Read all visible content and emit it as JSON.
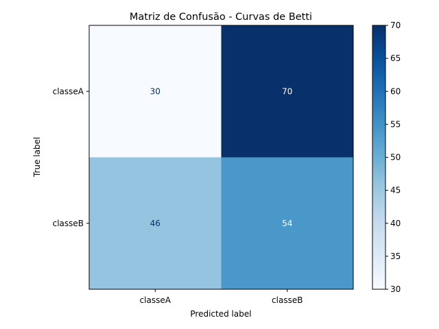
{
  "chart_data": {
    "type": "heatmap",
    "title": "Matriz de Confusão - Curvas de Betti",
    "xlabel": "Predicted label",
    "ylabel": "True label",
    "x_categories": [
      "classeA",
      "classeB"
    ],
    "y_categories": [
      "classeA",
      "classeB"
    ],
    "values": [
      [
        30,
        70
      ],
      [
        46,
        54
      ]
    ],
    "colormap": "Blues",
    "colorbar": {
      "min": 30,
      "max": 70,
      "ticks": [
        30,
        35,
        40,
        45,
        50,
        55,
        60,
        65,
        70
      ],
      "tick_labels": [
        "30",
        "35",
        "40",
        "45",
        "50",
        "55",
        "60",
        "65",
        "70"
      ]
    },
    "grid": false
  }
}
